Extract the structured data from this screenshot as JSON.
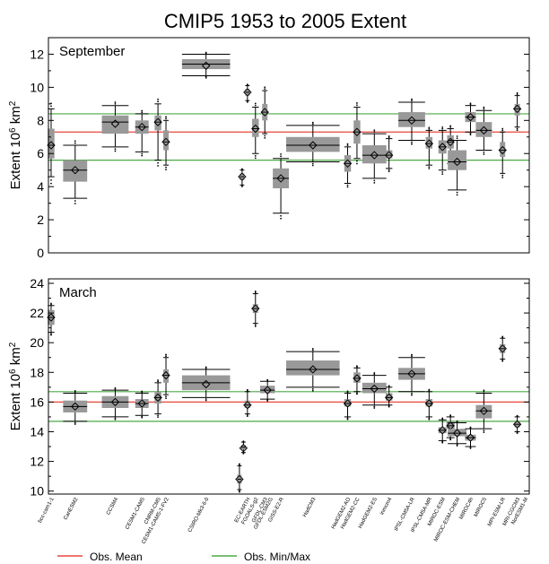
{
  "chart_data": {
    "type": "box",
    "title": "CMIP5 1953 to 2005 Extent",
    "ylabel_main": "Extent 10",
    "ylabel_sup": "6",
    "ylabel_unit": " km",
    "ylabel_unit_sup": "2",
    "models": [
      {
        "label": "bcc-csm1-1",
        "x": 0.1
      },
      {
        "label": "CanESM2",
        "x": 1.0
      },
      {
        "label": "CCSM4",
        "x": 2.5
      },
      {
        "label": "CESM1-CAM5",
        "x": 3.5
      },
      {
        "label": "CNRM-CM5",
        "x": 4.1
      },
      {
        "label": "CESM1-CAM5-1-FV2",
        "x": 4.4
      },
      {
        "label": "CSIRO-Mk3-6-0",
        "x": 5.9
      },
      {
        "label": "EC-EARTH",
        "x": 7.45
      },
      {
        "label": "FGOALS-g2",
        "x": 7.75
      },
      {
        "label": "GFDL-CM3",
        "x": 8.1
      },
      {
        "label": "GFDL-ESM2G",
        "x": 8.3
      },
      {
        "label": "GISS-E2-R",
        "x": 8.7
      },
      {
        "label": "HadCM3",
        "x": 9.9
      },
      {
        "label": "HadGEM2-AO",
        "x": 11.2
      },
      {
        "label": "HadGEM2-CC",
        "x": 11.55
      },
      {
        "label": "HadGEM2-ES",
        "x": 12.2
      },
      {
        "label": "inmcm4",
        "x": 12.75
      },
      {
        "label": "IPSL-CM5A-LR",
        "x": 13.6
      },
      {
        "label": "IPSL-CM5A-MR",
        "x": 14.25
      },
      {
        "label": "MIROC-ESM",
        "x": 14.75
      },
      {
        "label": "MIROC-ESM-CHEM",
        "x": 15.3
      },
      {
        "label": "MIROC4h",
        "x": 15.8
      },
      {
        "label": "MIROC5",
        "x": 16.3
      },
      {
        "label": "MPI-ESM-LR",
        "x": 17.0
      },
      {
        "label": "MRI-CGCM3",
        "x": 17.55
      },
      {
        "label": "NorESM1-M",
        "x": 17.85
      }
    ],
    "panels": [
      {
        "name": "September",
        "ylim": [
          0,
          13
        ],
        "yticks": [
          "0",
          "2",
          "4",
          "6",
          "8",
          "10",
          "12"
        ],
        "obs_mean": 7.3,
        "obs_min": 5.6,
        "obs_max": 8.4,
        "boxes": [
          {
            "x": 0.1,
            "w": 0.25,
            "q1": 5.7,
            "q3": 7.5,
            "median": 6.5,
            "mean": 6.5,
            "wlo": 4.6,
            "whi": 8.7
          },
          {
            "x": 1.0,
            "w": 0.9,
            "q1": 4.3,
            "q3": 5.6,
            "median": 5.0,
            "mean": 5.0,
            "wlo": 3.3,
            "whi": 6.5
          },
          {
            "x": 2.5,
            "w": 1.0,
            "q1": 7.2,
            "q3": 8.3,
            "median": 7.9,
            "mean": 7.8,
            "wlo": 6.4,
            "whi": 8.9
          },
          {
            "x": 3.5,
            "w": 0.5,
            "q1": 7.2,
            "q3": 8.0,
            "median": 7.6,
            "mean": 7.6,
            "wlo": 6.1,
            "whi": 8.4
          },
          {
            "x": 4.1,
            "w": 0.25,
            "q1": 7.4,
            "q3": 8.3,
            "median": 7.9,
            "mean": 7.9,
            "wlo": 5.6,
            "whi": 9.0
          },
          {
            "x": 4.4,
            "w": 0.2,
            "q1": 6.2,
            "q3": 7.4,
            "median": 6.7,
            "mean": 6.7,
            "wlo": 5.3,
            "whi": 8.0
          },
          {
            "x": 5.9,
            "w": 1.8,
            "q1": 11.1,
            "q3": 11.7,
            "median": 11.4,
            "mean": 11.3,
            "wlo": 10.7,
            "whi": 12.0
          },
          {
            "x": 7.25,
            "w": 0.15,
            "q1": 4.4,
            "q3": 4.8,
            "median": 4.6,
            "mean": 4.6,
            "wlo": 4.1,
            "whi": 5.0
          },
          {
            "x": 7.45,
            "w": 0.15,
            "q1": 9.5,
            "q3": 9.9,
            "median": 9.7,
            "mean": 9.7,
            "wlo": 9.2,
            "whi": 10.1
          },
          {
            "x": 7.75,
            "w": 0.25,
            "q1": 7.0,
            "q3": 8.1,
            "median": 7.5,
            "mean": 7.5,
            "wlo": 6.0,
            "whi": 8.8
          },
          {
            "x": 8.1,
            "w": 0.2,
            "q1": 8.0,
            "q3": 9.0,
            "median": 8.5,
            "mean": 8.5,
            "wlo": 7.2,
            "whi": 9.8
          },
          {
            "x": 8.7,
            "w": 0.6,
            "q1": 3.9,
            "q3": 5.1,
            "median": 4.5,
            "mean": 4.5,
            "wlo": 2.4,
            "whi": 5.7
          },
          {
            "x": 9.9,
            "w": 2.0,
            "q1": 6.1,
            "q3": 7.0,
            "median": 6.5,
            "mean": 6.5,
            "wlo": 5.5,
            "whi": 7.7
          },
          {
            "x": 11.2,
            "w": 0.25,
            "q1": 4.9,
            "q3": 5.9,
            "median": 5.4,
            "mean": 5.4,
            "wlo": 4.2,
            "whi": 6.4
          },
          {
            "x": 11.55,
            "w": 0.25,
            "q1": 6.6,
            "q3": 8.0,
            "median": 7.3,
            "mean": 7.3,
            "wlo": 5.7,
            "whi": 8.8
          },
          {
            "x": 12.2,
            "w": 0.9,
            "q1": 5.4,
            "q3": 6.5,
            "median": 5.9,
            "mean": 5.9,
            "wlo": 4.5,
            "whi": 7.2
          },
          {
            "x": 12.75,
            "w": 0.25,
            "q1": 5.7,
            "q3": 6.2,
            "median": 5.9,
            "mean": 5.9,
            "wlo": 5.1,
            "whi": 6.9
          },
          {
            "x": 13.6,
            "w": 1.0,
            "q1": 7.6,
            "q3": 8.5,
            "median": 8.0,
            "mean": 8.0,
            "wlo": 6.8,
            "whi": 9.1
          },
          {
            "x": 14.25,
            "w": 0.25,
            "q1": 6.3,
            "q3": 7.0,
            "median": 6.6,
            "mean": 6.6,
            "wlo": 5.3,
            "whi": 7.4
          },
          {
            "x": 14.75,
            "w": 0.3,
            "q1": 6.0,
            "q3": 6.8,
            "median": 6.4,
            "mean": 6.4,
            "wlo": 5.0,
            "whi": 7.4
          },
          {
            "x": 15.05,
            "w": 0.25,
            "q1": 6.3,
            "q3": 7.1,
            "median": 6.7,
            "mean": 6.7,
            "wlo": 5.4,
            "whi": 7.5
          },
          {
            "x": 15.3,
            "w": 0.7,
            "q1": 5.0,
            "q3": 6.2,
            "median": 5.5,
            "mean": 5.5,
            "wlo": 3.8,
            "whi": 6.8
          },
          {
            "x": 15.8,
            "w": 0.4,
            "q1": 7.9,
            "q3": 8.5,
            "median": 8.2,
            "mean": 8.2,
            "wlo": 7.3,
            "whi": 8.9
          },
          {
            "x": 16.3,
            "w": 0.6,
            "q1": 7.0,
            "q3": 7.9,
            "median": 7.4,
            "mean": 7.4,
            "wlo": 6.2,
            "whi": 8.6
          },
          {
            "x": 17.0,
            "w": 0.2,
            "q1": 5.8,
            "q3": 6.7,
            "median": 6.2,
            "mean": 6.2,
            "wlo": 4.8,
            "whi": 7.3
          },
          {
            "x": 17.55,
            "w": 0.2,
            "q1": 8.3,
            "q3": 9.0,
            "median": 8.7,
            "mean": 8.7,
            "wlo": 7.6,
            "whi": 9.5
          }
        ]
      },
      {
        "name": "March",
        "ylim": [
          9.8,
          24.3
        ],
        "yticks": [
          "10",
          "12",
          "14",
          "16",
          "18",
          "20",
          "22",
          "24"
        ],
        "obs_mean": 16.0,
        "obs_min": 14.7,
        "obs_max": 16.7,
        "boxes": [
          {
            "x": 0.1,
            "w": 0.25,
            "q1": 21.2,
            "q3": 22.2,
            "median": 21.7,
            "mean": 21.7,
            "wlo": 20.7,
            "whi": 22.5
          },
          {
            "x": 1.0,
            "w": 0.9,
            "q1": 15.3,
            "q3": 16.1,
            "median": 15.7,
            "mean": 15.7,
            "wlo": 14.7,
            "whi": 16.6
          },
          {
            "x": 2.5,
            "w": 1.0,
            "q1": 15.6,
            "q3": 16.4,
            "median": 16.0,
            "mean": 16.0,
            "wlo": 15.0,
            "whi": 16.8
          },
          {
            "x": 3.5,
            "w": 0.5,
            "q1": 15.6,
            "q3": 16.2,
            "median": 15.9,
            "mean": 15.9,
            "wlo": 15.1,
            "whi": 16.6
          },
          {
            "x": 4.1,
            "w": 0.25,
            "q1": 15.9,
            "q3": 16.7,
            "median": 16.3,
            "mean": 16.3,
            "wlo": 15.2,
            "whi": 17.3
          },
          {
            "x": 4.4,
            "w": 0.2,
            "q1": 17.3,
            "q3": 18.2,
            "median": 17.8,
            "mean": 17.8,
            "wlo": 16.5,
            "whi": 19.0
          },
          {
            "x": 5.9,
            "w": 1.8,
            "q1": 16.8,
            "q3": 17.8,
            "median": 17.3,
            "mean": 17.2,
            "wlo": 16.3,
            "whi": 18.2
          },
          {
            "x": 7.15,
            "w": 0.15,
            "q1": 10.5,
            "q3": 11.1,
            "median": 10.8,
            "mean": 10.8,
            "wlo": 10.1,
            "whi": 11.7
          },
          {
            "x": 7.3,
            "w": 0.15,
            "q1": 12.8,
            "q3": 13.1,
            "median": 12.95,
            "mean": 12.9,
            "wlo": 12.6,
            "whi": 13.3
          },
          {
            "x": 7.45,
            "w": 0.2,
            "q1": 15.6,
            "q3": 16.1,
            "median": 15.8,
            "mean": 15.8,
            "wlo": 15.2,
            "whi": 16.7
          },
          {
            "x": 7.75,
            "w": 0.2,
            "q1": 22.0,
            "q3": 22.6,
            "median": 22.3,
            "mean": 22.3,
            "wlo": 21.3,
            "whi": 23.3
          },
          {
            "x": 8.2,
            "w": 0.55,
            "q1": 16.6,
            "q3": 17.1,
            "median": 16.8,
            "mean": 16.8,
            "wlo": 16.2,
            "whi": 17.4
          },
          {
            "x": 9.9,
            "w": 2.0,
            "q1": 17.8,
            "q3": 18.8,
            "median": 18.2,
            "mean": 18.2,
            "wlo": 17.0,
            "whi": 19.4
          },
          {
            "x": 11.2,
            "w": 0.25,
            "q1": 15.7,
            "q3": 16.2,
            "median": 15.9,
            "mean": 15.9,
            "wlo": 15.0,
            "whi": 16.6
          },
          {
            "x": 11.55,
            "w": 0.25,
            "q1": 17.3,
            "q3": 18.0,
            "median": 17.6,
            "mean": 17.6,
            "wlo": 16.7,
            "whi": 18.3
          },
          {
            "x": 12.2,
            "w": 0.9,
            "q1": 16.6,
            "q3": 17.3,
            "median": 16.9,
            "mean": 16.9,
            "wlo": 15.8,
            "whi": 17.8
          },
          {
            "x": 12.75,
            "w": 0.25,
            "q1": 16.1,
            "q3": 16.6,
            "median": 16.3,
            "mean": 16.3,
            "wlo": 15.8,
            "whi": 17.0
          },
          {
            "x": 13.6,
            "w": 1.0,
            "q1": 17.5,
            "q3": 18.3,
            "median": 17.9,
            "mean": 17.9,
            "wlo": 16.7,
            "whi": 19.0
          },
          {
            "x": 14.25,
            "w": 0.25,
            "q1": 15.7,
            "q3": 16.2,
            "median": 15.9,
            "mean": 15.9,
            "wlo": 15.0,
            "whi": 16.7
          },
          {
            "x": 14.75,
            "w": 0.3,
            "q1": 13.9,
            "q3": 14.3,
            "median": 14.1,
            "mean": 14.1,
            "wlo": 13.4,
            "whi": 14.8
          },
          {
            "x": 15.05,
            "w": 0.3,
            "q1": 14.2,
            "q3": 14.7,
            "median": 14.4,
            "mean": 14.4,
            "wlo": 13.6,
            "whi": 15.0
          },
          {
            "x": 15.3,
            "w": 0.7,
            "q1": 13.7,
            "q3": 14.2,
            "median": 13.9,
            "mean": 13.9,
            "wlo": 13.2,
            "whi": 14.6
          },
          {
            "x": 15.8,
            "w": 0.4,
            "q1": 13.4,
            "q3": 13.8,
            "median": 13.6,
            "mean": 13.6,
            "wlo": 13.0,
            "whi": 14.2
          },
          {
            "x": 16.3,
            "w": 0.6,
            "q1": 14.9,
            "q3": 15.8,
            "median": 15.4,
            "mean": 15.4,
            "wlo": 14.2,
            "whi": 16.6
          },
          {
            "x": 17.0,
            "w": 0.2,
            "q1": 19.3,
            "q3": 19.9,
            "median": 19.6,
            "mean": 19.6,
            "wlo": 18.9,
            "whi": 20.3
          },
          {
            "x": 17.55,
            "w": 0.2,
            "q1": 14.3,
            "q3": 14.7,
            "median": 14.5,
            "mean": 14.5,
            "wlo": 14.0,
            "whi": 15.0
          }
        ]
      }
    ],
    "legend": [
      {
        "label": "Obs. Mean",
        "color": "#e8473b"
      },
      {
        "label": "Obs. Min/Max",
        "color": "#4aaa44"
      }
    ],
    "colors": {
      "box": "#999999",
      "whisker": "#000000",
      "mean_marker": "#000000",
      "obs_mean": "#e8473b",
      "obs_minmax": "#4aaa44"
    },
    "xlim": [
      0,
      18
    ]
  }
}
